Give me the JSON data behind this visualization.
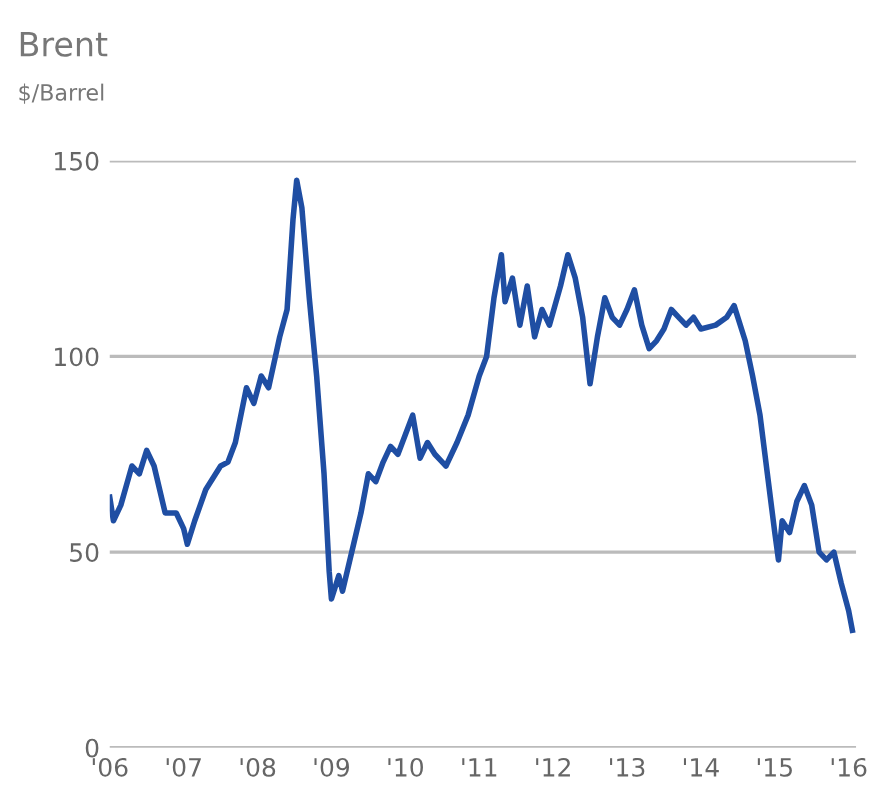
{
  "chart_data": {
    "type": "line",
    "title": "Brent",
    "subtitle": "$/Barrel",
    "x": [
      2006.0,
      2006.05,
      2006.15,
      2006.3,
      2006.4,
      2006.5,
      2006.6,
      2006.75,
      2006.9,
      2007.0,
      2007.05,
      2007.15,
      2007.3,
      2007.5,
      2007.6,
      2007.7,
      2007.85,
      2007.95,
      2008.05,
      2008.15,
      2008.3,
      2008.4,
      2008.48,
      2008.53,
      2008.6,
      2008.7,
      2008.8,
      2008.9,
      2008.97,
      2009.0,
      2009.1,
      2009.15,
      2009.3,
      2009.4,
      2009.5,
      2009.6,
      2009.7,
      2009.8,
      2009.9,
      2010.0,
      2010.1,
      2010.2,
      2010.3,
      2010.4,
      2010.5,
      2010.55,
      2010.7,
      2010.85,
      2011.0,
      2011.1,
      2011.2,
      2011.3,
      2011.35,
      2011.45,
      2011.55,
      2011.65,
      2011.75,
      2011.85,
      2011.95,
      2012.1,
      2012.2,
      2012.3,
      2012.4,
      2012.5,
      2012.6,
      2012.7,
      2012.8,
      2012.9,
      2013.0,
      2013.1,
      2013.2,
      2013.3,
      2013.4,
      2013.5,
      2013.6,
      2013.7,
      2013.8,
      2013.9,
      2014.0,
      2014.2,
      2014.35,
      2014.45,
      2014.5,
      2014.6,
      2014.7,
      2014.8,
      2014.9,
      2015.0,
      2015.05,
      2015.1,
      2015.2,
      2015.3,
      2015.4,
      2015.5,
      2015.6,
      2015.7,
      2015.8,
      2015.9,
      2016.0,
      2016.05
    ],
    "series": [
      {
        "color": "#1f4ea3",
        "values": [
          64,
          58,
          62,
          72,
          70,
          76,
          72,
          60,
          60,
          56,
          52,
          58,
          66,
          72,
          73,
          78,
          92,
          88,
          95,
          92,
          105,
          112,
          135,
          145,
          138,
          115,
          95,
          70,
          45,
          38,
          44,
          40,
          52,
          60,
          70,
          68,
          73,
          77,
          75,
          80,
          85,
          74,
          78,
          75,
          73,
          72,
          78,
          85,
          95,
          100,
          115,
          126,
          114,
          120,
          108,
          118,
          105,
          112,
          108,
          118,
          126,
          120,
          110,
          93,
          105,
          115,
          110,
          108,
          112,
          117,
          108,
          102,
          104,
          107,
          112,
          110,
          108,
          110,
          107,
          108,
          110,
          113,
          110,
          104,
          95,
          85,
          70,
          55,
          48,
          58,
          55,
          63,
          67,
          62,
          50,
          48,
          50,
          42,
          35,
          30
        ]
      }
    ],
    "xlim": [
      2006,
      2016.1
    ],
    "ylim": [
      0,
      150
    ],
    "yticks": [
      0,
      50,
      100,
      150
    ],
    "xticks": [
      {
        "value": 2006,
        "label": "'06"
      },
      {
        "value": 2007,
        "label": "'07"
      },
      {
        "value": 2008,
        "label": "'08"
      },
      {
        "value": 2009,
        "label": "'09"
      },
      {
        "value": 2010,
        "label": "'10"
      },
      {
        "value": 2011,
        "label": "'11"
      },
      {
        "value": 2012,
        "label": "'12"
      },
      {
        "value": 2013,
        "label": "'13"
      },
      {
        "value": 2014,
        "label": "'14"
      },
      {
        "value": 2015,
        "label": "'15"
      },
      {
        "value": 2016,
        "label": "'16"
      }
    ],
    "grid": "y",
    "line_style": "solid"
  }
}
